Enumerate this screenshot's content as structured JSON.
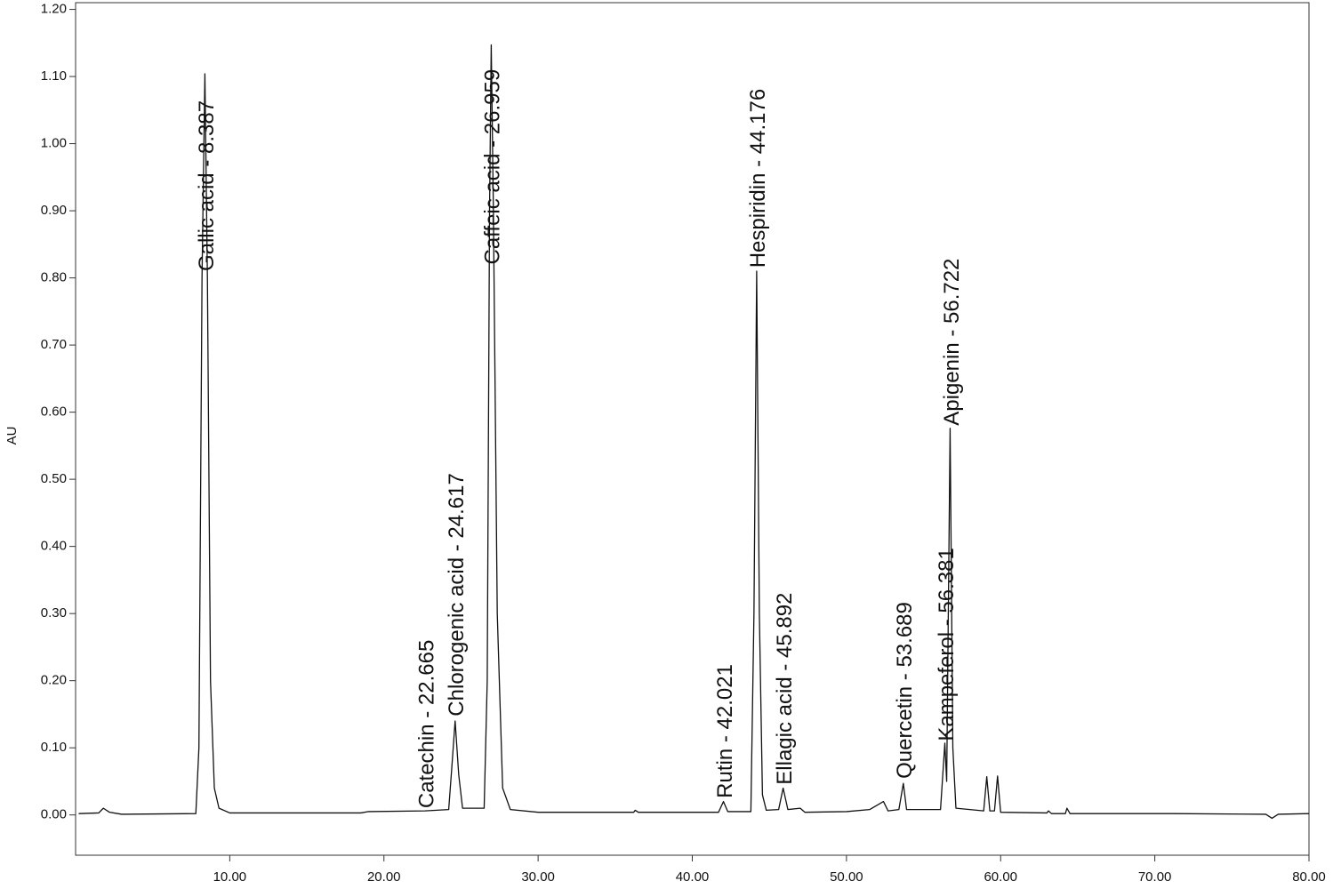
{
  "chart_data": {
    "type": "line",
    "y_label": "AU",
    "xlim": [
      0,
      80
    ],
    "ylim": [
      -0.06,
      1.21
    ],
    "xticks": [
      {
        "value": 10,
        "label": "10.00"
      },
      {
        "value": 20,
        "label": "20.00"
      },
      {
        "value": 30,
        "label": "30.00"
      },
      {
        "value": 40,
        "label": "40.00"
      },
      {
        "value": 50,
        "label": "50.00"
      },
      {
        "value": 60,
        "label": "60.00"
      },
      {
        "value": 70,
        "label": "70.00"
      },
      {
        "value": 80,
        "label": "80.00"
      }
    ],
    "yticks": [
      {
        "value": 0,
        "label": "0.00"
      },
      {
        "value": 0.1,
        "label": "0.10"
      },
      {
        "value": 0.2,
        "label": "0.20"
      },
      {
        "value": 0.3,
        "label": "0.30"
      },
      {
        "value": 0.4,
        "label": "0.40"
      },
      {
        "value": 0.5,
        "label": "0.50"
      },
      {
        "value": 0.6,
        "label": "0.60"
      },
      {
        "value": 0.7,
        "label": "0.70"
      },
      {
        "value": 0.8,
        "label": "0.80"
      },
      {
        "value": 0.9,
        "label": "0.90"
      },
      {
        "value": 1,
        "label": "1.00"
      },
      {
        "value": 1.1,
        "label": "1.10"
      },
      {
        "value": 1.2,
        "label": "1.20"
      }
    ],
    "grid": false,
    "series": [
      {
        "color": "#111111",
        "x": [
          0.2,
          1.5,
          1.8,
          2.2,
          3,
          7.8,
          8.0,
          8.2,
          8.387,
          8.55,
          8.75,
          9.0,
          9.3,
          10,
          14.8,
          18.5,
          19,
          22.665,
          24.2,
          24.4,
          24.617,
          24.85,
          25.1,
          26.5,
          26.7,
          26.85,
          26.959,
          27.1,
          27.35,
          27.7,
          28.2,
          30,
          36.2,
          36.3,
          36.5,
          41.7,
          42.021,
          42.3,
          43.8,
          44.0,
          44.176,
          44.35,
          44.55,
          44.8,
          45.6,
          45.892,
          46.2,
          47.0,
          47.3,
          50,
          51.5,
          52.4,
          52.7,
          53.4,
          53.689,
          53.9,
          56.1,
          56.381,
          56.5,
          56.722,
          56.9,
          57.1,
          58.9,
          59.1,
          59.3,
          59.6,
          59.8,
          60.0,
          63,
          63.1,
          63.3,
          64.2,
          64.3,
          64.5,
          71.2,
          77.2,
          77.6,
          78,
          80
        ],
        "values": [
          0.002,
          0.003,
          0.01,
          0.004,
          0.001,
          0.002,
          0.1,
          0.8,
          1.104,
          0.8,
          0.2,
          0.04,
          0.01,
          0.003,
          0.003,
          0.003,
          0.005,
          0.006,
          0.008,
          0.07,
          0.14,
          0.06,
          0.01,
          0.01,
          0.2,
          0.9,
          1.147,
          0.9,
          0.3,
          0.04,
          0.008,
          0.004,
          0.004,
          0.007,
          0.004,
          0.004,
          0.02,
          0.005,
          0.005,
          0.3,
          0.81,
          0.3,
          0.03,
          0.007,
          0.008,
          0.04,
          0.008,
          0.01,
          0.004,
          0.005,
          0.008,
          0.02,
          0.006,
          0.008,
          0.047,
          0.008,
          0.008,
          0.107,
          0.05,
          0.576,
          0.1,
          0.01,
          0.006,
          0.057,
          0.006,
          0.006,
          0.058,
          0.004,
          0.003,
          0.006,
          0.002,
          0.002,
          0.01,
          0.002,
          0.002,
          0.001,
          -0.005,
          0.001,
          0.002
        ]
      }
    ],
    "annotations": [
      {
        "text": "Gallic acid - 8.387",
        "x": 8.387,
        "y": 0.81
      },
      {
        "text": "Catechin - 22.665",
        "x": 22.665,
        "y": 0.01
      },
      {
        "text": "Chlorogenic acid - 24.617",
        "x": 24.617,
        "y": 0.147
      },
      {
        "text": "Caffeic acid - 26.959",
        "x": 26.959,
        "y": 0.82
      },
      {
        "text": "Rutin - 42.021",
        "x": 42.021,
        "y": 0.025
      },
      {
        "text": "Hespiridin - 44.176",
        "x": 44.176,
        "y": 0.815
      },
      {
        "text": "Ellagic acid - 45.892",
        "x": 45.892,
        "y": 0.045
      },
      {
        "text": "Quercetin - 53.689",
        "x": 53.689,
        "y": 0.054
      },
      {
        "text": "Kampeferol - 56.381",
        "x": 56.381,
        "y": 0.11
      },
      {
        "text": "Apigenin - 56.722",
        "x": 56.722,
        "y": 0.58
      }
    ]
  }
}
